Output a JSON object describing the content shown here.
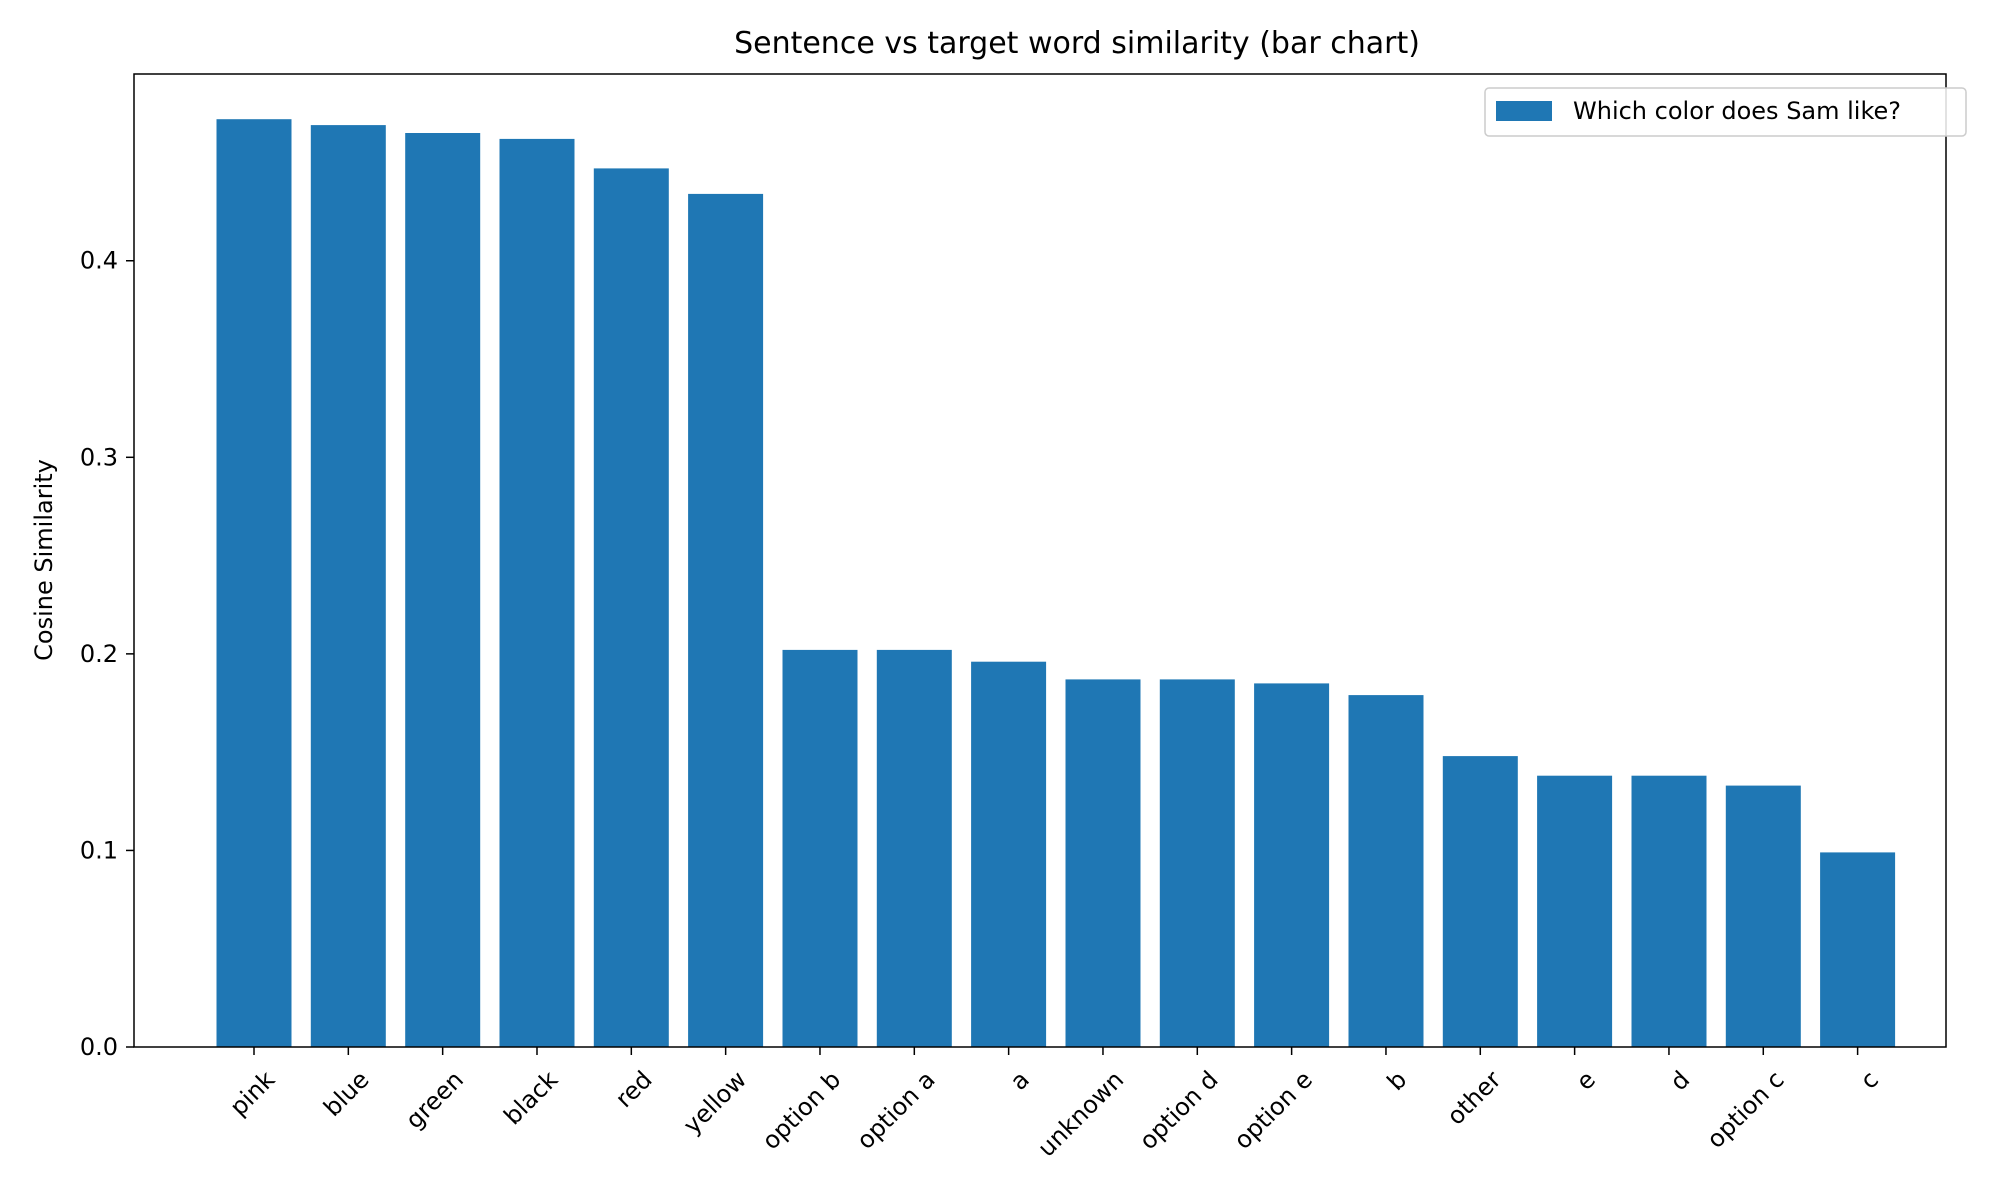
{
  "chart_data": {
    "type": "bar",
    "title": "Sentence vs target word similarity (bar chart)",
    "xlabel": "",
    "ylabel": "Cosine Similarity",
    "categories": [
      "pink",
      "blue",
      "green",
      "black",
      "red",
      "yellow",
      "option b",
      "option a",
      "a",
      "unknown",
      "option d",
      "option e",
      "b",
      "other",
      "e",
      "d",
      "option c",
      "c"
    ],
    "series": [
      {
        "name": "Which color does Sam like?",
        "color": "#1f77b4",
        "values": [
          0.472,
          0.469,
          0.465,
          0.462,
          0.447,
          0.434,
          0.202,
          0.202,
          0.196,
          0.187,
          0.187,
          0.185,
          0.179,
          0.148,
          0.138,
          0.138,
          0.133,
          0.099
        ]
      }
    ],
    "ylim": [
      0,
      0.495
    ],
    "yticks": [
      0.0,
      0.1,
      0.2,
      0.3,
      0.4
    ],
    "ytick_labels": [
      "0.0",
      "0.1",
      "0.2",
      "0.3",
      "0.4"
    ],
    "grid": false,
    "legend_position": "top-right"
  }
}
